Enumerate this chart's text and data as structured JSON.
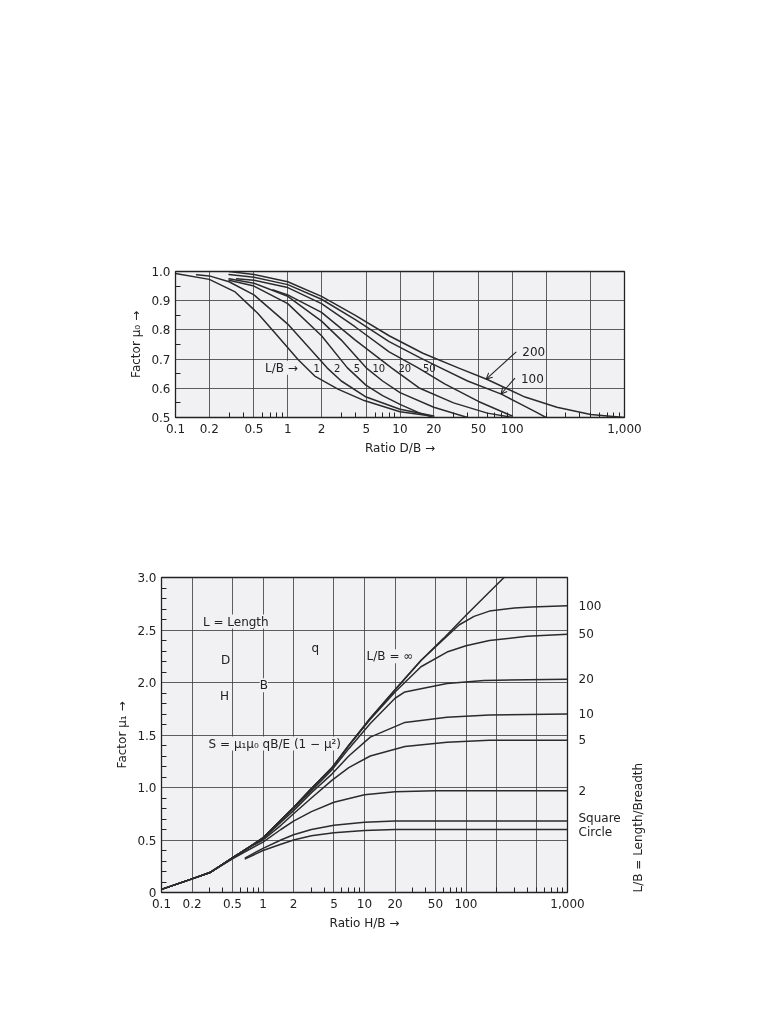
{
  "chart_data": [
    {
      "type": "line",
      "xlabel": "Ratio D/B →",
      "ylabel": "Factor μ₀ →",
      "log": "x",
      "grid": true,
      "xlim": [
        0.1,
        1000
      ],
      "ylim": [
        0.5,
        1.0
      ],
      "xticks": [
        0.1,
        0.2,
        0.5,
        1,
        2,
        5,
        10,
        20,
        50,
        100,
        {
          "value": 200,
          "label": null
        },
        {
          "value": 500,
          "label": null
        },
        {
          "value": 1000,
          "label": "1,000"
        }
      ],
      "yticks": [
        0.5,
        0.6,
        0.7,
        0.8,
        0.9,
        {
          "value": 1,
          "label": "1.0"
        }
      ],
      "annotations": [
        "L/B →"
      ],
      "series": [
        {
          "name": "1",
          "color": "#2b2b2b",
          "x": [
            0.1,
            0.2,
            0.34,
            0.54,
            0.82,
            1.24,
            1.74,
            2.8,
            4.8,
            10,
            19
          ],
          "values": [
            0.993,
            0.973,
            0.93,
            0.857,
            0.777,
            0.698,
            0.642,
            0.597,
            0.558,
            0.52,
            0.505
          ]
        },
        {
          "name": "2",
          "color": "#2b2b2b",
          "x": [
            0.154,
            0.2,
            0.3,
            0.5,
            1,
            1.5,
            2.24,
            3,
            5,
            10,
            20
          ],
          "values": [
            0.989,
            0.985,
            0.965,
            0.92,
            0.82,
            0.745,
            0.67,
            0.625,
            0.57,
            0.528,
            0.505
          ]
        },
        {
          "name": "5",
          "color": "#2b2b2b",
          "x": [
            0.3,
            0.5,
            1,
            2,
            3.4,
            5,
            7,
            10,
            15,
            20
          ],
          "values": [
            0.97,
            0.95,
            0.89,
            0.78,
            0.67,
            0.61,
            0.575,
            0.545,
            0.515,
            0.5
          ]
        },
        {
          "name": "10",
          "color": "#2b2b2b",
          "x": [
            0.3,
            0.5,
            1,
            2,
            3,
            5,
            7,
            10,
            20,
            40
          ],
          "values": [
            0.975,
            0.96,
            0.915,
            0.83,
            0.765,
            0.67,
            0.625,
            0.585,
            0.535,
            0.5
          ]
        },
        {
          "name": "20",
          "color": "#2b2b2b",
          "x": [
            0.74,
            1,
            2,
            4,
            8.4,
            15,
            30,
            60,
            100
          ],
          "values": [
            0.937,
            0.92,
            0.86,
            0.765,
            0.67,
            0.6,
            0.55,
            0.515,
            0.5
          ]
        },
        {
          "name": "50",
          "color": "#2b2b2b",
          "x": [
            0.35,
            0.5,
            1,
            2,
            4,
            8,
            14.5,
            25,
            50,
            100
          ],
          "values": [
            0.975,
            0.97,
            0.945,
            0.89,
            0.81,
            0.725,
            0.67,
            0.615,
            0.555,
            0.505
          ]
        },
        {
          "name": "100",
          "color": "#2b2b2b",
          "x": [
            0.3,
            0.5,
            1,
            2,
            4,
            8,
            15,
            23,
            40,
            80,
            120,
            160,
            200
          ],
          "values": [
            0.99,
            0.98,
            0.955,
            0.905,
            0.835,
            0.76,
            0.705,
            0.67,
            0.625,
            0.58,
            0.545,
            0.52,
            0.5
          ]
        },
        {
          "name": "200",
          "color": "#2b2b2b",
          "x": [
            0.3,
            0.5,
            1,
            2,
            4,
            8,
            16,
            33,
            60,
            130,
            250,
            500,
            1000
          ],
          "values": [
            1.0,
            0.99,
            0.965,
            0.915,
            0.85,
            0.78,
            0.72,
            0.67,
            0.63,
            0.57,
            0.535,
            0.51,
            0.5
          ]
        }
      ]
    },
    {
      "type": "line",
      "xlabel": "Ratio H/B →",
      "ylabel": "Factor μ₁ →",
      "log": "x",
      "grid": true,
      "xlim": [
        0.1,
        1000
      ],
      "ylim": [
        0,
        3
      ],
      "xticks": [
        0.1,
        0.2,
        0.5,
        1,
        2,
        5,
        10,
        20,
        50,
        100,
        {
          "value": 200,
          "label": null
        },
        {
          "value": 500,
          "label": null
        },
        {
          "value": 1000,
          "label": "1,000"
        }
      ],
      "yticks": [
        0,
        0.5,
        {
          "value": 1,
          "label": "1.0"
        },
        1.5,
        {
          "value": 2,
          "label": "2.0"
        },
        2.5,
        {
          "value": 3,
          "label": "3.0"
        }
      ],
      "annotations": [
        "L = Length",
        "q",
        "D",
        "H",
        "B",
        "S = μ₁μ₀ qB/E (1 − μ²)",
        "L/B = Length/Breadth"
      ],
      "series": [
        {
          "name": "L/B = ∞",
          "color": "#2b2b2b",
          "x": [
            0.1,
            0.2,
            0.3,
            0.5,
            0.7,
            1,
            1.5,
            2,
            3,
            4.8,
            7,
            11.4,
            20,
            36,
            60,
            100,
            150,
            237
          ],
          "values": [
            0.03,
            0.13,
            0.19,
            0.33,
            0.42,
            0.52,
            0.69,
            0.81,
            0.99,
            1.19,
            1.4,
            1.66,
            1.93,
            2.21,
            2.42,
            2.64,
            2.81,
            3.0
          ]
        },
        {
          "name": "100",
          "color": "#2b2b2b",
          "x": [
            0.1,
            0.2,
            0.3,
            0.5,
            0.7,
            1,
            1.5,
            2,
            3,
            4.8,
            7,
            11.4,
            20,
            36,
            60,
            86,
            120,
            170,
            300,
            440,
            1000
          ],
          "values": [
            0.03,
            0.13,
            0.19,
            0.33,
            0.42,
            0.52,
            0.69,
            0.81,
            0.99,
            1.19,
            1.4,
            1.66,
            1.93,
            2.21,
            2.41,
            2.55,
            2.63,
            2.68,
            2.71,
            2.72,
            2.73
          ]
        },
        {
          "name": "50",
          "color": "#2b2b2b",
          "x": [
            0.1,
            0.2,
            0.3,
            0.5,
            0.7,
            1,
            1.5,
            2,
            3,
            4.8,
            7,
            11.4,
            20,
            36,
            65,
            100,
            170,
            400,
            1000
          ],
          "values": [
            0.03,
            0.13,
            0.19,
            0.33,
            0.42,
            0.52,
            0.69,
            0.81,
            0.99,
            1.19,
            1.4,
            1.65,
            1.91,
            2.15,
            2.29,
            2.35,
            2.4,
            2.44,
            2.46
          ]
        },
        {
          "name": "20",
          "color": "#2b2b2b",
          "x": [
            0.1,
            0.2,
            0.3,
            0.5,
            0.7,
            1,
            1.5,
            2,
            3,
            4.8,
            7,
            11.4,
            20,
            25,
            65,
            150,
            1000
          ],
          "values": [
            0.03,
            0.13,
            0.19,
            0.33,
            0.42,
            0.52,
            0.69,
            0.8,
            0.97,
            1.17,
            1.37,
            1.61,
            1.85,
            1.91,
            1.99,
            2.02,
            2.03
          ]
        },
        {
          "name": "10",
          "color": "#2b2b2b",
          "x": [
            0.1,
            0.2,
            0.3,
            0.5,
            0.7,
            1,
            1.5,
            2,
            3,
            4.8,
            7,
            11.4,
            25,
            65,
            170,
            1000
          ],
          "values": [
            0.03,
            0.13,
            0.19,
            0.33,
            0.42,
            0.51,
            0.67,
            0.78,
            0.95,
            1.13,
            1.3,
            1.48,
            1.62,
            1.67,
            1.69,
            1.7
          ]
        },
        {
          "name": "5",
          "color": "#2b2b2b",
          "x": [
            0.1,
            0.2,
            0.3,
            0.5,
            0.7,
            1,
            1.5,
            2,
            3,
            4.8,
            7,
            11.4,
            25,
            65,
            170,
            1000
          ],
          "values": [
            0.03,
            0.13,
            0.19,
            0.33,
            0.42,
            0.5,
            0.64,
            0.75,
            0.9,
            1.07,
            1.19,
            1.3,
            1.39,
            1.43,
            1.45,
            1.45
          ]
        },
        {
          "name": "2",
          "color": "#2b2b2b",
          "x": [
            0.1,
            0.2,
            0.3,
            0.5,
            0.7,
            1,
            1.5,
            2,
            3,
            5,
            10,
            20,
            50,
            1000
          ],
          "values": [
            0.03,
            0.13,
            0.19,
            0.32,
            0.4,
            0.48,
            0.6,
            0.68,
            0.77,
            0.86,
            0.93,
            0.96,
            0.97,
            0.97
          ]
        },
        {
          "name": "Square",
          "color": "#2b2b2b",
          "x": [
            0.67,
            1,
            1.5,
            2,
            3,
            5,
            10,
            20,
            100,
            1000
          ],
          "values": [
            0.33,
            0.42,
            0.5,
            0.55,
            0.6,
            0.64,
            0.67,
            0.68,
            0.68,
            0.68
          ]
        },
        {
          "name": "Circle",
          "color": "#2b2b2b",
          "x": [
            0.67,
            1,
            1.5,
            2,
            3,
            5,
            10,
            20,
            1000
          ],
          "values": [
            0.32,
            0.4,
            0.46,
            0.5,
            0.54,
            0.57,
            0.59,
            0.6,
            0.6
          ]
        }
      ]
    }
  ]
}
